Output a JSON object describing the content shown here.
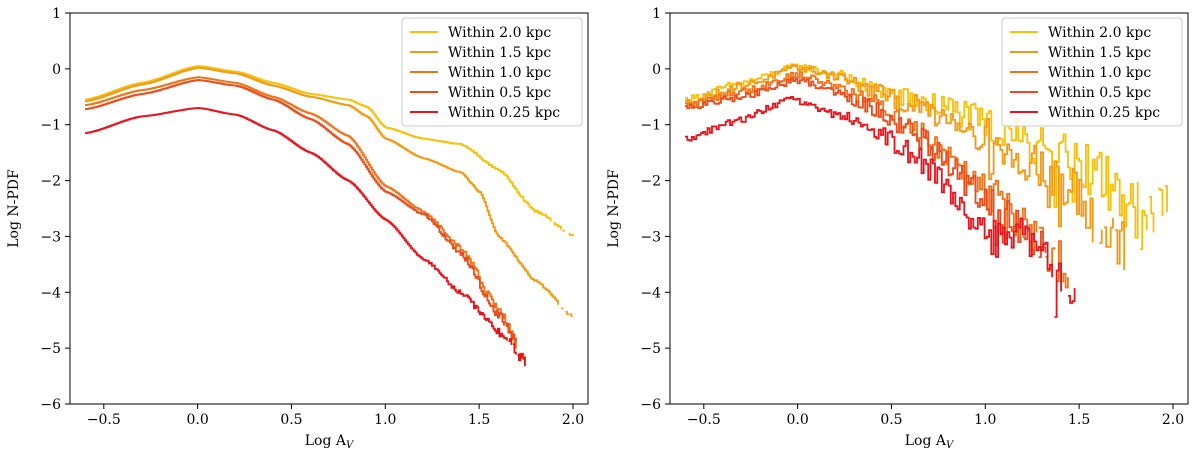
{
  "colors": {
    "within_2_0": "#f7c00a",
    "within_1_5": "#f39a14",
    "within_1_0": "#ef7417",
    "within_0_5": "#ec4a18",
    "within_0_25": "#e8121b"
  },
  "chart_data": [
    {
      "type": "line",
      "title": "",
      "xlabel": "Log A",
      "xlabel_sub": "V",
      "ylabel": "Log N-PDF",
      "xlim": [
        -0.68,
        2.08
      ],
      "ylim": [
        -6,
        1
      ],
      "x_ticks": [
        -0.5,
        0.0,
        0.5,
        1.0,
        1.5,
        2.0
      ],
      "x_tick_labels": [
        "−0.5",
        "0.0",
        "0.5",
        "1.0",
        "1.5",
        "2.0"
      ],
      "y_ticks": [
        1,
        0,
        -1,
        -2,
        -3,
        -4,
        -5,
        -6
      ],
      "y_tick_labels": [
        "1",
        "0",
        "−1",
        "−2",
        "−3",
        "−4",
        "−5",
        "−6"
      ],
      "legend_position": "upper-right",
      "noise": false,
      "series": [
        {
          "name": "Within 2.0 kpc",
          "color_key": "within_2_0",
          "points": [
            [
              -0.6,
              -0.55
            ],
            [
              -0.3,
              -0.25
            ],
            [
              0.0,
              0.05
            ],
            [
              0.2,
              -0.05
            ],
            [
              0.4,
              -0.25
            ],
            [
              0.6,
              -0.45
            ],
            [
              0.8,
              -0.55
            ],
            [
              0.9,
              -0.68
            ],
            [
              1.0,
              -1.05
            ],
            [
              1.2,
              -1.25
            ],
            [
              1.4,
              -1.35
            ],
            [
              1.6,
              -1.8
            ],
            [
              1.8,
              -2.55
            ],
            [
              2.0,
              -2.98
            ]
          ]
        },
        {
          "name": "Within 1.5 kpc",
          "color_key": "within_1_5",
          "points": [
            [
              -0.6,
              -0.58
            ],
            [
              -0.3,
              -0.28
            ],
            [
              0.0,
              0.02
            ],
            [
              0.2,
              -0.08
            ],
            [
              0.4,
              -0.3
            ],
            [
              0.6,
              -0.5
            ],
            [
              0.8,
              -0.65
            ],
            [
              0.9,
              -0.85
            ],
            [
              1.0,
              -1.25
            ],
            [
              1.2,
              -1.6
            ],
            [
              1.4,
              -1.85
            ],
            [
              1.5,
              -2.2
            ],
            [
              1.6,
              -3.0
            ],
            [
              1.8,
              -3.8
            ],
            [
              2.0,
              -4.45
            ]
          ]
        },
        {
          "name": "Within 1.0 kpc",
          "color_key": "within_1_0",
          "points": [
            [
              -0.6,
              -0.65
            ],
            [
              -0.3,
              -0.38
            ],
            [
              0.0,
              -0.15
            ],
            [
              0.2,
              -0.25
            ],
            [
              0.4,
              -0.5
            ],
            [
              0.6,
              -0.8
            ],
            [
              0.8,
              -1.2
            ],
            [
              1.0,
              -2.1
            ],
            [
              1.2,
              -2.55
            ],
            [
              1.4,
              -3.2
            ],
            [
              1.6,
              -4.3
            ],
            [
              1.75,
              -5.25
            ]
          ]
        },
        {
          "name": "Within 0.5 kpc",
          "color_key": "within_0_5",
          "points": [
            [
              -0.6,
              -0.72
            ],
            [
              -0.3,
              -0.45
            ],
            [
              0.0,
              -0.2
            ],
            [
              0.2,
              -0.3
            ],
            [
              0.4,
              -0.55
            ],
            [
              0.6,
              -0.9
            ],
            [
              0.8,
              -1.35
            ],
            [
              1.0,
              -2.2
            ],
            [
              1.2,
              -2.6
            ],
            [
              1.4,
              -3.3
            ],
            [
              1.6,
              -4.4
            ],
            [
              1.75,
              -5.2
            ]
          ]
        },
        {
          "name": "Within 0.25 kpc",
          "color_key": "within_0_25",
          "points": [
            [
              -0.6,
              -1.15
            ],
            [
              -0.3,
              -0.85
            ],
            [
              0.0,
              -0.7
            ],
            [
              0.2,
              -0.82
            ],
            [
              0.4,
              -1.1
            ],
            [
              0.6,
              -1.5
            ],
            [
              0.8,
              -2.0
            ],
            [
              1.0,
              -2.7
            ],
            [
              1.2,
              -3.4
            ],
            [
              1.4,
              -4.0
            ],
            [
              1.6,
              -4.7
            ],
            [
              1.75,
              -5.25
            ]
          ]
        }
      ]
    },
    {
      "type": "line",
      "title": "",
      "xlabel": "Log A",
      "xlabel_sub": "V",
      "ylabel": "Log N-PDF",
      "xlim": [
        -0.68,
        2.08
      ],
      "ylim": [
        -6,
        1
      ],
      "x_ticks": [
        -0.5,
        0.0,
        0.5,
        1.0,
        1.5,
        2.0
      ],
      "x_tick_labels": [
        "−0.5",
        "0.0",
        "0.5",
        "1.0",
        "1.5",
        "2.0"
      ],
      "y_ticks": [
        1,
        0,
        -1,
        -2,
        -3,
        -4,
        -5,
        -6
      ],
      "y_tick_labels": [
        "1",
        "0",
        "−1",
        "−2",
        "−3",
        "−4",
        "−5",
        "−6"
      ],
      "legend_position": "upper-right",
      "noise": true,
      "series": [
        {
          "name": "Within 2.0 kpc",
          "color_key": "within_2_0",
          "points": [
            [
              -0.6,
              -0.55
            ],
            [
              -0.3,
              -0.25
            ],
            [
              0.0,
              0.05
            ],
            [
              0.2,
              -0.1
            ],
            [
              0.4,
              -0.35
            ],
            [
              0.6,
              -0.55
            ],
            [
              0.8,
              -0.7
            ],
            [
              1.0,
              -1.0
            ],
            [
              1.2,
              -1.3
            ],
            [
              1.4,
              -1.55
            ],
            [
              1.6,
              -1.9
            ],
            [
              1.8,
              -2.5
            ],
            [
              1.97,
              -2.55
            ]
          ]
        },
        {
          "name": "Within 1.5 kpc",
          "color_key": "within_1_5",
          "points": [
            [
              -0.6,
              -0.6
            ],
            [
              -0.3,
              -0.3
            ],
            [
              0.0,
              0.02
            ],
            [
              0.2,
              -0.12
            ],
            [
              0.4,
              -0.4
            ],
            [
              0.6,
              -0.65
            ],
            [
              0.8,
              -0.85
            ],
            [
              1.0,
              -1.2
            ],
            [
              1.2,
              -1.6
            ],
            [
              1.4,
              -2.0
            ],
            [
              1.6,
              -2.8
            ],
            [
              1.75,
              -3.25
            ]
          ]
        },
        {
          "name": "Within 1.0 kpc",
          "color_key": "within_1_0",
          "points": [
            [
              -0.6,
              -0.65
            ],
            [
              -0.3,
              -0.4
            ],
            [
              0.0,
              -0.1
            ],
            [
              0.2,
              -0.3
            ],
            [
              0.4,
              -0.6
            ],
            [
              0.6,
              -1.0
            ],
            [
              0.8,
              -1.5
            ],
            [
              1.0,
              -2.1
            ],
            [
              1.2,
              -2.8
            ],
            [
              1.35,
              -3.3
            ],
            [
              1.45,
              -3.55
            ]
          ]
        },
        {
          "name": "Within 0.5 kpc",
          "color_key": "within_0_5",
          "points": [
            [
              -0.6,
              -0.7
            ],
            [
              -0.3,
              -0.5
            ],
            [
              0.0,
              -0.2
            ],
            [
              0.2,
              -0.4
            ],
            [
              0.4,
              -0.7
            ],
            [
              0.6,
              -1.1
            ],
            [
              0.8,
              -1.7
            ],
            [
              1.0,
              -2.4
            ],
            [
              1.2,
              -2.9
            ],
            [
              1.35,
              -3.5
            ]
          ]
        },
        {
          "name": "Within 0.25 kpc",
          "color_key": "within_0_25",
          "points": [
            [
              -0.6,
              -1.25
            ],
            [
              -0.3,
              -0.9
            ],
            [
              -0.05,
              -0.55
            ],
            [
              0.2,
              -0.8
            ],
            [
              0.4,
              -1.1
            ],
            [
              0.6,
              -1.5
            ],
            [
              0.8,
              -2.1
            ],
            [
              0.9,
              -2.6
            ],
            [
              1.0,
              -3.0
            ],
            [
              1.2,
              -3.0
            ],
            [
              1.35,
              -3.6
            ],
            [
              1.45,
              -4.0
            ],
            [
              1.48,
              -4.35
            ]
          ]
        }
      ]
    }
  ]
}
